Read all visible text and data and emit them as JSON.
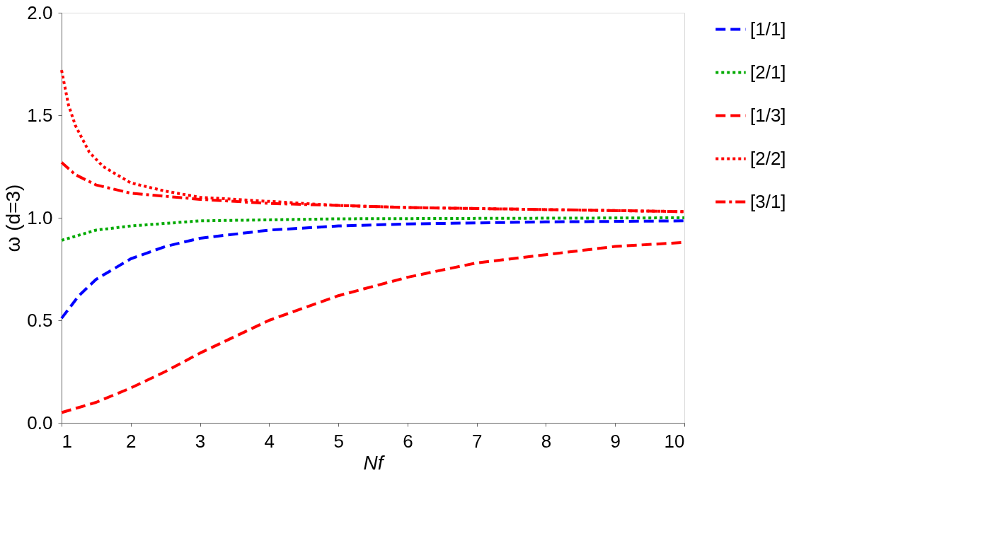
{
  "chart_data": {
    "type": "line",
    "xlabel": "Nf",
    "ylabel": "ω (d=3)",
    "xlim": [
      1,
      10
    ],
    "ylim": [
      0,
      2
    ],
    "xticks": [
      1,
      2,
      3,
      4,
      5,
      6,
      7,
      8,
      9,
      10
    ],
    "yticks": [
      {
        "value": 0,
        "label": "0.0"
      },
      {
        "value": 0.5,
        "label": "0.5"
      },
      {
        "value": 1,
        "label": "1.0"
      },
      {
        "value": 1.5,
        "label": "1.5"
      },
      {
        "value": 2,
        "label": "2.0"
      }
    ],
    "grid": false,
    "legend": "right",
    "marker": "none",
    "series": [
      {
        "name": "[1/1]",
        "color": "#0000ff",
        "line_style": "dashed",
        "x": [
          1,
          1.25,
          1.5,
          2,
          2.5,
          3,
          4,
          5,
          6,
          7,
          8,
          10
        ],
        "values": [
          0.51,
          0.62,
          0.7,
          0.8,
          0.86,
          0.9,
          0.94,
          0.96,
          0.97,
          0.975,
          0.98,
          0.985
        ]
      },
      {
        "name": "[2/1]",
        "color": "#00aa00",
        "line_style": "dotted",
        "x": [
          1,
          1.5,
          2,
          3,
          4,
          5,
          10
        ],
        "values": [
          0.89,
          0.94,
          0.96,
          0.985,
          0.99,
          0.995,
          1.0
        ]
      },
      {
        "name": "[1/3]",
        "color": "#ff0000",
        "line_style": "dashed",
        "x": [
          1,
          1.5,
          2,
          2.5,
          3,
          3.5,
          4,
          5,
          6,
          7,
          8,
          9,
          10
        ],
        "values": [
          0.05,
          0.1,
          0.17,
          0.25,
          0.34,
          0.42,
          0.5,
          0.62,
          0.71,
          0.78,
          0.82,
          0.86,
          0.88
        ]
      },
      {
        "name": "[2/2]",
        "color": "#ff0000",
        "line_style": "dotted",
        "x": [
          1,
          1.1,
          1.2,
          1.4,
          1.6,
          2,
          2.5,
          3,
          4,
          5,
          6,
          8,
          10
        ],
        "values": [
          1.72,
          1.55,
          1.45,
          1.32,
          1.25,
          1.17,
          1.13,
          1.1,
          1.08,
          1.06,
          1.05,
          1.04,
          1.03
        ]
      },
      {
        "name": "[3/1]",
        "color": "#ff0000",
        "line_style": "dashdot",
        "x": [
          1,
          1.2,
          1.5,
          2,
          3,
          4,
          5,
          6,
          8,
          10
        ],
        "values": [
          1.27,
          1.21,
          1.16,
          1.12,
          1.09,
          1.07,
          1.06,
          1.05,
          1.04,
          1.03
        ]
      }
    ]
  }
}
